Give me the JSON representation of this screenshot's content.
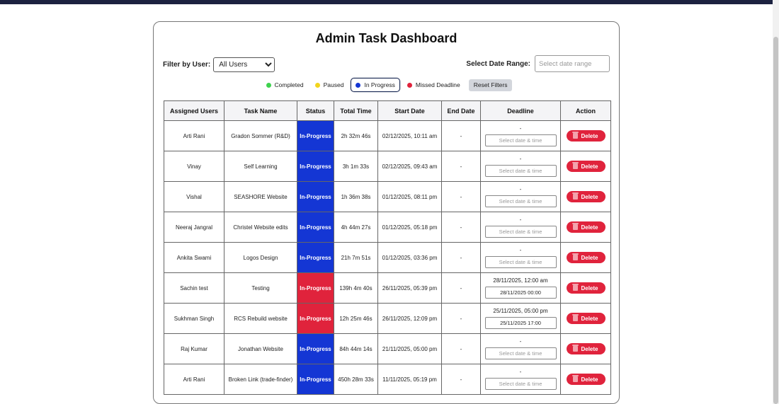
{
  "title": "Admin Task Dashboard",
  "filters": {
    "user_label": "Filter by User:",
    "user_selected": "All Users",
    "date_label": "Select Date Range:",
    "date_placeholder": "Select date range"
  },
  "legend": {
    "items": [
      {
        "label": "Completed",
        "color": "#3ed24e"
      },
      {
        "label": "Paused",
        "color": "#f2d51c"
      },
      {
        "label": "In Progress",
        "color": "#1436d4"
      },
      {
        "label": "Missed Deadline",
        "color": "#e0233c"
      }
    ],
    "active": "In Progress",
    "reset_label": "Reset Filters"
  },
  "table": {
    "headers": [
      "Assigned Users",
      "Task Name",
      "Status",
      "Total Time",
      "Start Date",
      "End Date",
      "Deadline",
      "Action"
    ],
    "deadline_placeholder": "Select date & time",
    "delete_label": "Delete",
    "rows": [
      {
        "user": "Arti Rani",
        "task": "Gradon Sommer (R&D)",
        "status": "In-Progress",
        "status_color": "#1436d4",
        "total": "2h 32m 46s",
        "start": "02/12/2025, 10:11 am",
        "end": "-",
        "deadline_text": "-",
        "deadline_value": ""
      },
      {
        "user": "Vinay",
        "task": "Self Learning",
        "status": "In-Progress",
        "status_color": "#1436d4",
        "total": "3h 1m 33s",
        "start": "02/12/2025, 09:43 am",
        "end": "-",
        "deadline_text": "-",
        "deadline_value": ""
      },
      {
        "user": "Vishal",
        "task": "SEASHORE Website",
        "status": "In-Progress",
        "status_color": "#1436d4",
        "total": "1h 36m 38s",
        "start": "01/12/2025, 08:11 pm",
        "end": "-",
        "deadline_text": "-",
        "deadline_value": ""
      },
      {
        "user": "Neeraj Jangral",
        "task": "Christel Website edits",
        "status": "In-Progress",
        "status_color": "#1436d4",
        "total": "4h 44m 27s",
        "start": "01/12/2025, 05:18 pm",
        "end": "-",
        "deadline_text": "-",
        "deadline_value": ""
      },
      {
        "user": "Ankita Swami",
        "task": "Logos Design",
        "status": "In-Progress",
        "status_color": "#1436d4",
        "total": "21h 7m 51s",
        "start": "01/12/2025, 03:36 pm",
        "end": "-",
        "deadline_text": "-",
        "deadline_value": ""
      },
      {
        "user": "Sachin test",
        "task": "Testing",
        "status": "In-Progress",
        "status_color": "#e0233c",
        "total": "139h 4m 40s",
        "start": "26/11/2025, 05:39 pm",
        "end": "-",
        "deadline_text": "28/11/2025, 12:00 am",
        "deadline_value": "28/11/2025 00:00"
      },
      {
        "user": "Sukhman Singh",
        "task": "RCS Rebuild website",
        "status": "In-Progress",
        "status_color": "#e0233c",
        "total": "12h 25m 46s",
        "start": "26/11/2025, 12:09 pm",
        "end": "-",
        "deadline_text": "25/11/2025, 05:00 pm",
        "deadline_value": "25/11/2025 17:00"
      },
      {
        "user": "Raj Kumar",
        "task": "Jonathan Website",
        "status": "In-Progress",
        "status_color": "#1436d4",
        "total": "84h 44m 14s",
        "start": "21/11/2025, 05:00 pm",
        "end": "-",
        "deadline_text": "-",
        "deadline_value": ""
      },
      {
        "user": "Arti Rani",
        "task": "Broken Link (trade-finder)",
        "status": "In-Progress",
        "status_color": "#1436d4",
        "total": "450h 28m 33s",
        "start": "11/11/2025, 05:19 pm",
        "end": "-",
        "deadline_text": "-",
        "deadline_value": ""
      }
    ]
  }
}
